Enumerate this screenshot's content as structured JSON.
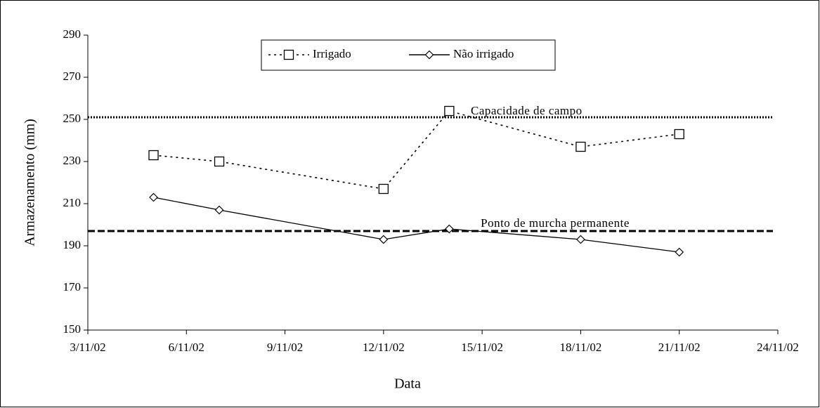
{
  "chart_data": {
    "type": "line",
    "x_label": "Data",
    "y_label": "Armazenamento (mm)",
    "x": [
      "2002-11-05",
      "2002-11-07",
      "2002-11-12",
      "2002-11-14",
      "2002-11-18",
      "2002-11-21"
    ],
    "series": [
      {
        "name": "Irrigado",
        "color": "#000000",
        "marker": "square",
        "dash": "dotted",
        "values": [
          233,
          230,
          217,
          254,
          237,
          243
        ]
      },
      {
        "name": "Não irrigado",
        "color": "#000000",
        "marker": "diamond",
        "dash": "solid",
        "values": [
          213,
          207,
          193,
          198,
          193,
          187
        ]
      }
    ],
    "reference_lines": [
      {
        "label": "Capacidade de campo",
        "value": 251,
        "dash": "dotted"
      },
      {
        "label": "Ponto de murcha permanente",
        "value": 197,
        "dash": "dashed"
      }
    ],
    "xlim": [
      "2002-11-03",
      "2002-11-24"
    ],
    "xticks": [
      {
        "value": "2002-11-03",
        "label": "3/11/02"
      },
      {
        "value": "2002-11-06",
        "label": "6/11/02"
      },
      {
        "value": "2002-11-09",
        "label": "9/11/02"
      },
      {
        "value": "2002-11-12",
        "label": "12/11/02"
      },
      {
        "value": "2002-11-15",
        "label": "15/11/02"
      },
      {
        "value": "2002-11-18",
        "label": "18/11/02"
      },
      {
        "value": "2002-11-21",
        "label": "21/11/02"
      },
      {
        "value": "2002-11-24",
        "label": "24/11/02"
      }
    ],
    "ylim": [
      150,
      290
    ],
    "yticks": [
      150,
      170,
      190,
      210,
      230,
      250,
      270,
      290
    ],
    "grid": false,
    "legend": "top"
  }
}
